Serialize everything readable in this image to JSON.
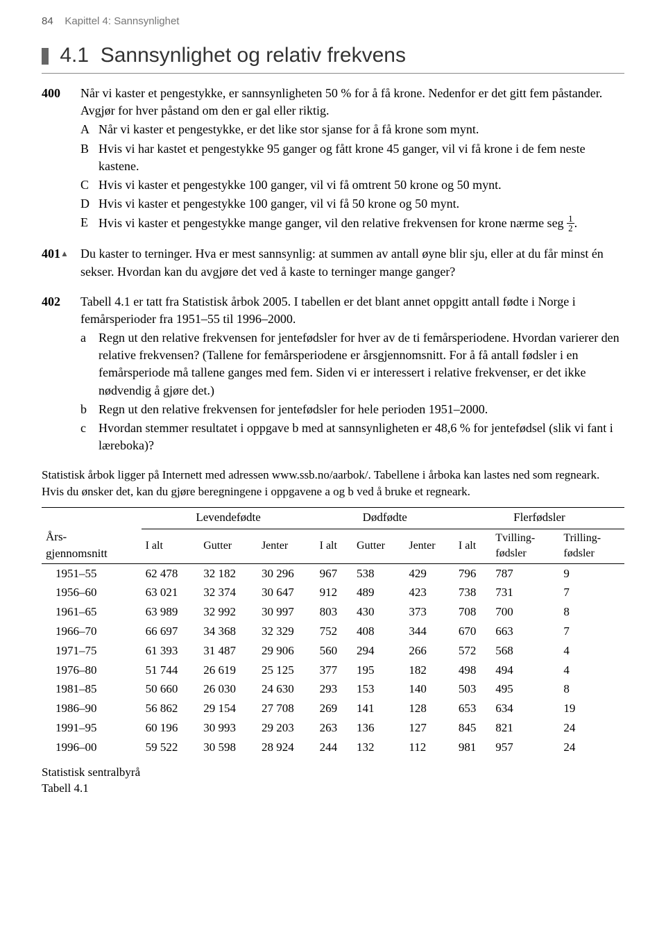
{
  "header": {
    "page_number": "84",
    "chapter": "Kapittel 4: Sannsynlighet"
  },
  "section": {
    "number": "4.1",
    "title": "Sannsynlighet og relativ frekvens"
  },
  "ex400": {
    "num": "400",
    "intro": "Når vi kaster et pengestykke, er sannsynligheten 50 % for å få krone. Nedenfor er det gitt fem påstander. Avgjør for hver påstand om den er gal eller riktig.",
    "A": "Når vi kaster et pengestykke, er det like stor sjanse for å få krone som mynt.",
    "B": "Hvis vi har kastet et pengestykke 95 ganger og fått krone 45 ganger, vil vi få krone i de fem neste kastene.",
    "C": "Hvis vi kaster et pengestykke 100 ganger, vil vi få omtrent 50 krone og 50 mynt.",
    "D": "Hvis vi kaster et pengestykke 100 ganger, vil vi få 50 krone og 50 mynt.",
    "E_a": "Hvis vi kaster et pengestykke mange ganger, vil den relative frekvensen for krone nærme seg ",
    "E_b": "."
  },
  "ex401": {
    "num": "401",
    "text": "Du kaster to terninger. Hva er mest sannsynlig: at summen av antall øyne blir sju, eller at du får minst én sekser. Hvordan kan du avgjøre det ved å kaste to terninger mange ganger?"
  },
  "ex402": {
    "num": "402",
    "intro": "Tabell 4.1 er tatt fra Statistisk årbok 2005. I tabellen er det blant annet oppgitt antall fødte i Norge i femårsperioder fra 1951–55 til 1996–2000.",
    "a": "Regn ut den relative frekvensen for jentefødsler for hver av de ti femårsperiodene. Hvordan varierer den relative frekvensen? (Tallene for femårsperiodene er årsgjennomsnitt. For å få antall fødsler i en femårsperiode må tallene ganges med fem. Siden vi er interessert i relative frekvenser, er det ikke nødvendig å gjøre det.)",
    "b": "Regn ut den relative frekvensen for jentefødsler for hele perioden 1951–2000.",
    "c": "Hvordan stemmer resultatet i oppgave b med at sannsynligheten er 48,6 % for jentefødsel (slik vi fant i læreboka)?"
  },
  "note": "Statistisk årbok ligger på Internett med adressen www.ssb.no/aarbok/. Tabellene i årboka kan lastes ned som regneark. Hvis du ønsker det, kan du gjøre beregningene i oppgavene a og b ved å bruke et regneark.",
  "table": {
    "row_header_a": "Års-",
    "row_header_b": "gjennomsnitt",
    "group1": "Levendefødte",
    "group2": "Dødfødte",
    "group3": "Flerfødsler",
    "cols": {
      "c1": "I alt",
      "c2": "Gutter",
      "c3": "Jenter",
      "c4": "I alt",
      "c5": "Gutter",
      "c6": "Jenter",
      "c7": "I alt",
      "c8_a": "Tvilling-",
      "c8_b": "fødsler",
      "c9_a": "Trilling-",
      "c9_b": "fødsler"
    },
    "rows": [
      {
        "p": "1951–55",
        "l_i": "62 478",
        "l_g": "32 182",
        "l_j": "30 296",
        "d_i": "967",
        "d_g": "538",
        "d_j": "429",
        "f_i": "796",
        "f_tv": "787",
        "f_tr": "9"
      },
      {
        "p": "1956–60",
        "l_i": "63 021",
        "l_g": "32 374",
        "l_j": "30 647",
        "d_i": "912",
        "d_g": "489",
        "d_j": "423",
        "f_i": "738",
        "f_tv": "731",
        "f_tr": "7"
      },
      {
        "p": "1961–65",
        "l_i": "63 989",
        "l_g": "32 992",
        "l_j": "30 997",
        "d_i": "803",
        "d_g": "430",
        "d_j": "373",
        "f_i": "708",
        "f_tv": "700",
        "f_tr": "8"
      },
      {
        "p": "1966–70",
        "l_i": "66 697",
        "l_g": "34 368",
        "l_j": "32 329",
        "d_i": "752",
        "d_g": "408",
        "d_j": "344",
        "f_i": "670",
        "f_tv": "663",
        "f_tr": "7"
      },
      {
        "p": "1971–75",
        "l_i": "61 393",
        "l_g": "31 487",
        "l_j": "29 906",
        "d_i": "560",
        "d_g": "294",
        "d_j": "266",
        "f_i": "572",
        "f_tv": "568",
        "f_tr": "4"
      },
      {
        "p": "1976–80",
        "l_i": "51 744",
        "l_g": "26 619",
        "l_j": "25 125",
        "d_i": "377",
        "d_g": "195",
        "d_j": "182",
        "f_i": "498",
        "f_tv": "494",
        "f_tr": "4"
      },
      {
        "p": "1981–85",
        "l_i": "50 660",
        "l_g": "26 030",
        "l_j": "24 630",
        "d_i": "293",
        "d_g": "153",
        "d_j": "140",
        "f_i": "503",
        "f_tv": "495",
        "f_tr": "8"
      },
      {
        "p": "1986–90",
        "l_i": "56 862",
        "l_g": "29 154",
        "l_j": "27 708",
        "d_i": "269",
        "d_g": "141",
        "d_j": "128",
        "f_i": "653",
        "f_tv": "634",
        "f_tr": "19"
      },
      {
        "p": "1991–95",
        "l_i": "60 196",
        "l_g": "30 993",
        "l_j": "29 203",
        "d_i": "263",
        "d_g": "136",
        "d_j": "127",
        "f_i": "845",
        "f_tv": "821",
        "f_tr": "24"
      },
      {
        "p": "1996–00",
        "l_i": "59 522",
        "l_g": "30 598",
        "l_j": "28 924",
        "d_i": "244",
        "d_g": "132",
        "d_j": "112",
        "f_i": "981",
        "f_tv": "957",
        "f_tr": "24"
      }
    ]
  },
  "source": {
    "a": "Statistisk sentralbyrå",
    "b": "Tabell 4.1"
  },
  "labels": {
    "A": "A",
    "B": "B",
    "C": "C",
    "D": "D",
    "E": "E",
    "a": "a",
    "b": "b",
    "c": "c"
  },
  "frac": {
    "num": "1",
    "den": "2"
  }
}
